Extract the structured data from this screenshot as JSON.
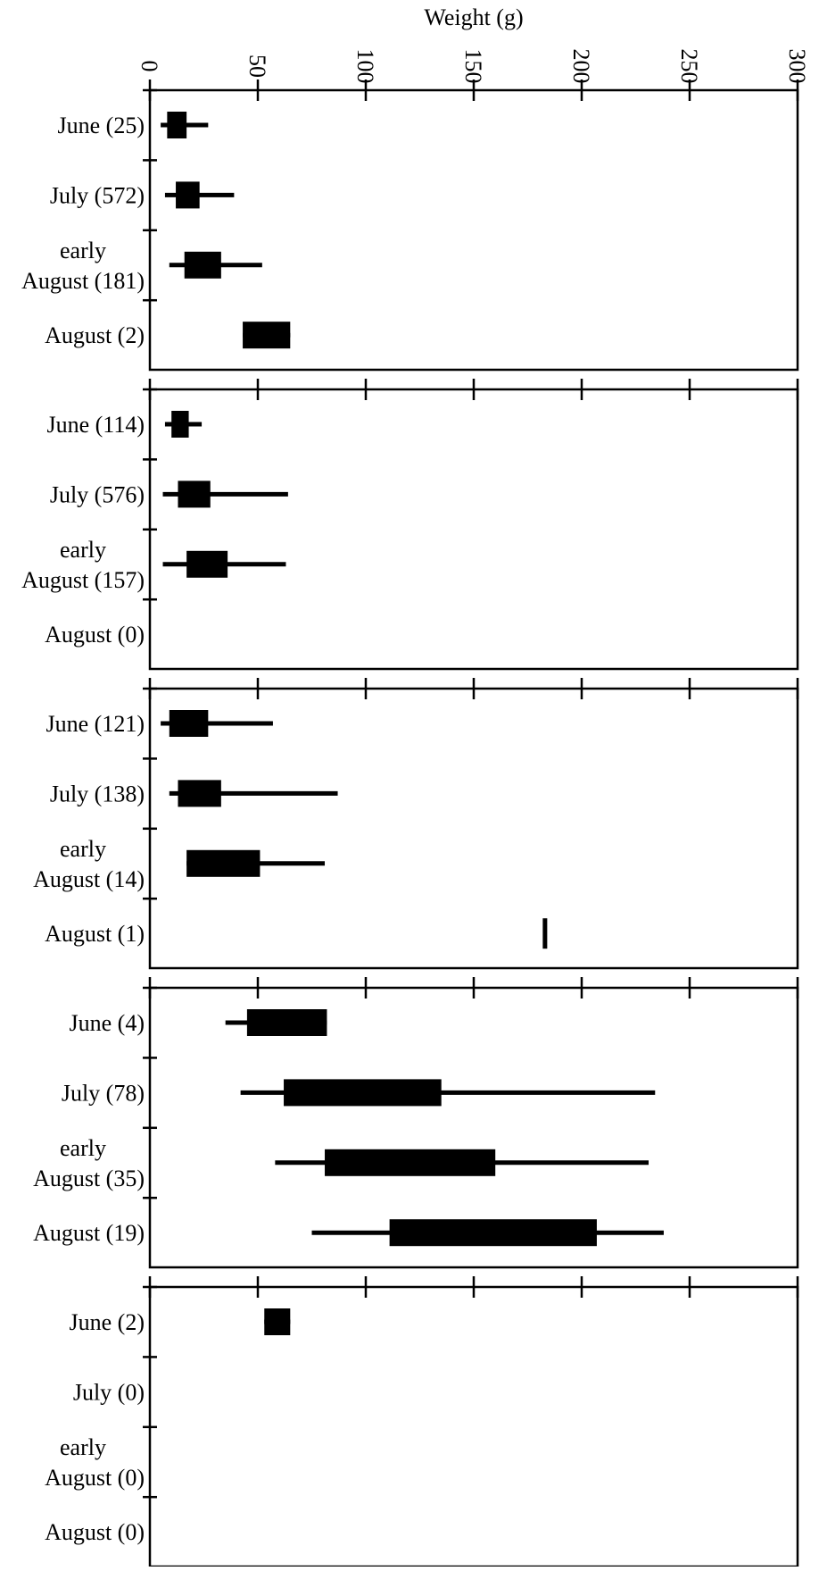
{
  "chart_data": {
    "type": "boxplot",
    "title": "",
    "xlabel": "Weight (g)",
    "ylabel": "",
    "xlim": [
      0,
      300
    ],
    "x_ticks": [
      "0",
      "50",
      "100",
      "150",
      "200",
      "250",
      "300"
    ],
    "panels": [
      {
        "categories": [
          {
            "label_lines": [
              "June (25)"
            ],
            "range": [
              5,
              27
            ],
            "box": [
              8,
              17
            ]
          },
          {
            "label_lines": [
              "July (572)"
            ],
            "range": [
              7,
              39
            ],
            "box": [
              12,
              23
            ]
          },
          {
            "label_lines": [
              "early",
              "August (181)"
            ],
            "range": [
              9,
              52
            ],
            "box": [
              16,
              33
            ]
          },
          {
            "label_lines": [
              "August (2)"
            ],
            "range": [
              43,
              65
            ],
            "box": [
              43,
              65
            ]
          }
        ]
      },
      {
        "categories": [
          {
            "label_lines": [
              "June (114)"
            ],
            "range": [
              7,
              24
            ],
            "box": [
              10,
              18
            ]
          },
          {
            "label_lines": [
              "July (576)"
            ],
            "range": [
              6,
              64
            ],
            "box": [
              13,
              28
            ]
          },
          {
            "label_lines": [
              "early",
              "August (157)"
            ],
            "range": [
              6,
              63
            ],
            "box": [
              17,
              36
            ]
          },
          {
            "label_lines": [
              "August (0)"
            ],
            "range": null,
            "box": null
          }
        ]
      },
      {
        "categories": [
          {
            "label_lines": [
              "June (121)"
            ],
            "range": [
              5,
              57
            ],
            "box": [
              9,
              27
            ]
          },
          {
            "label_lines": [
              "July (138)"
            ],
            "range": [
              9,
              87
            ],
            "box": [
              13,
              33
            ]
          },
          {
            "label_lines": [
              "early",
              "August (14)"
            ],
            "range": [
              17,
              81
            ],
            "box": [
              17,
              51
            ]
          },
          {
            "label_lines": [
              "August (1)"
            ],
            "range": [
              183,
              183
            ],
            "box": null
          }
        ]
      },
      {
        "categories": [
          {
            "label_lines": [
              "June (4)"
            ],
            "range": [
              35,
              82
            ],
            "box": [
              45,
              82
            ]
          },
          {
            "label_lines": [
              "July (78)"
            ],
            "range": [
              42,
              234
            ],
            "box": [
              62,
              135
            ]
          },
          {
            "label_lines": [
              "early",
              "August (35)"
            ],
            "range": [
              58,
              231
            ],
            "box": [
              81,
              160
            ]
          },
          {
            "label_lines": [
              "August (19)"
            ],
            "range": [
              75,
              238
            ],
            "box": [
              111,
              207
            ]
          }
        ]
      },
      {
        "categories": [
          {
            "label_lines": [
              "June (2)"
            ],
            "range": [
              53,
              65
            ],
            "box": [
              53,
              65
            ]
          },
          {
            "label_lines": [
              "July (0)"
            ],
            "range": null,
            "box": null
          },
          {
            "label_lines": [
              "early",
              "August (0)"
            ],
            "range": null,
            "box": null
          },
          {
            "label_lines": [
              "August (0)"
            ],
            "range": null,
            "box": null
          }
        ]
      }
    ]
  }
}
